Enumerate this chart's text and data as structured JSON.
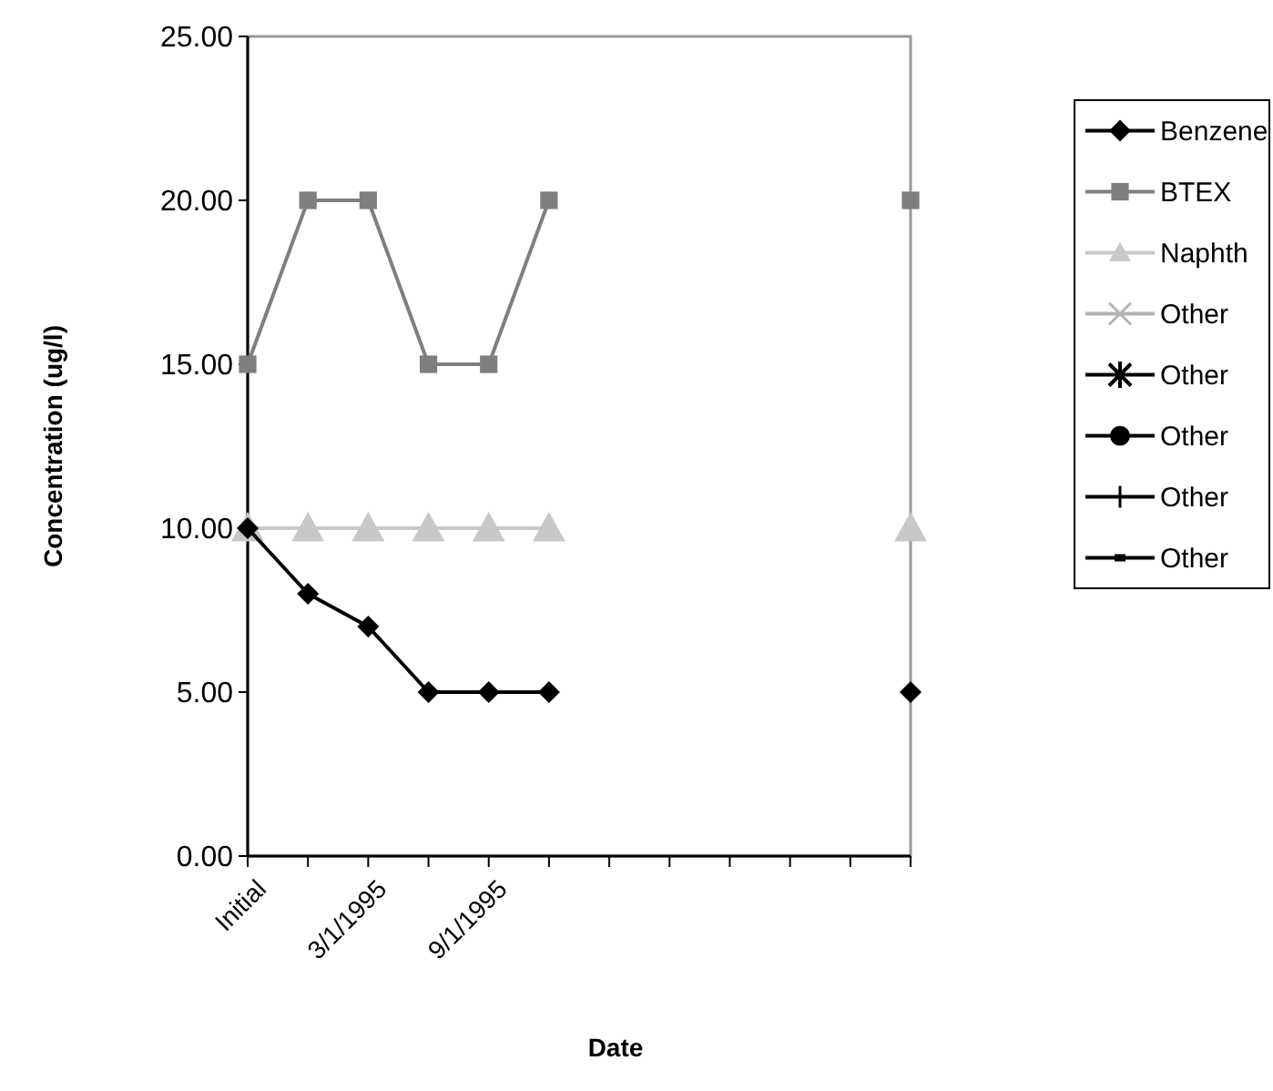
{
  "chart_data": {
    "type": "line",
    "xlabel": "Date",
    "ylabel": "Concentration (ug/l)",
    "categories": [
      "Initial",
      null,
      "3/1/1995",
      null,
      "9/1/1995",
      null,
      null,
      null,
      null,
      null,
      null,
      null
    ],
    "ylim": [
      0,
      25
    ],
    "yticks": [
      {
        "value": 0,
        "label": "0.00"
      },
      {
        "value": 5,
        "label": "5.00"
      },
      {
        "value": 10,
        "label": "10.00"
      },
      {
        "value": 15,
        "label": "15.00"
      },
      {
        "value": 20,
        "label": "20.00"
      },
      {
        "value": 25,
        "label": "25.00"
      }
    ],
    "grid": false,
    "legend": "right",
    "series": [
      {
        "name": "Benzene",
        "color": "#000000",
        "marker": "diamond",
        "values": [
          10,
          8,
          7,
          5,
          5,
          5,
          null,
          null,
          null,
          null,
          null,
          5
        ]
      },
      {
        "name": "BTEX",
        "color": "#7f7f7f",
        "marker": "square",
        "values": [
          15,
          20,
          20,
          15,
          15,
          20,
          null,
          null,
          null,
          null,
          null,
          20
        ]
      },
      {
        "name": "Naphth",
        "color": "#c8c8c8",
        "marker": "triangle",
        "values": [
          10,
          10,
          10,
          10,
          10,
          10,
          null,
          null,
          null,
          null,
          null,
          10
        ]
      },
      {
        "name": "Other",
        "color": "#b4b4b4",
        "marker": "cross",
        "values": [
          null,
          null,
          null,
          null,
          null,
          null,
          null,
          null,
          null,
          null,
          null,
          null
        ]
      },
      {
        "name": "Other",
        "color": "#000000",
        "marker": "star",
        "values": [
          null,
          null,
          null,
          null,
          null,
          null,
          null,
          null,
          null,
          null,
          null,
          null
        ]
      },
      {
        "name": "Other",
        "color": "#000000",
        "marker": "circle",
        "values": [
          null,
          null,
          null,
          null,
          null,
          null,
          null,
          null,
          null,
          null,
          null,
          null
        ]
      },
      {
        "name": "Other",
        "color": "#000000",
        "marker": "plus",
        "values": [
          null,
          null,
          null,
          null,
          null,
          null,
          null,
          null,
          null,
          null,
          null,
          null
        ]
      },
      {
        "name": "Other",
        "color": "#000000",
        "marker": "none",
        "values": [
          null,
          null,
          null,
          null,
          null,
          null,
          null,
          null,
          null,
          null,
          null,
          null
        ]
      }
    ]
  }
}
